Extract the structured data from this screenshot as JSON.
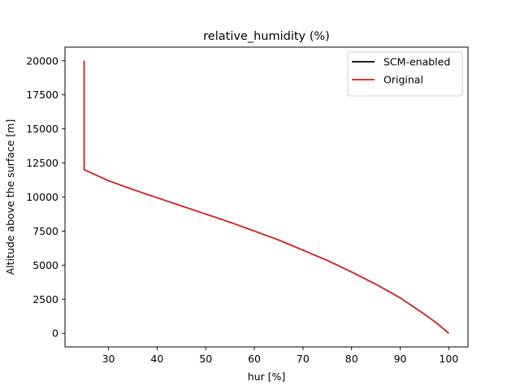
{
  "chart_data": {
    "type": "line",
    "title": "relative_humidity (%)",
    "xlabel": "hur [%]",
    "ylabel": "Altitude above the surface [m]",
    "xlim": [
      21.05,
      103.95
    ],
    "ylim": [
      -1000,
      21000
    ],
    "xticks": [
      30,
      40,
      50,
      60,
      70,
      80,
      90,
      100
    ],
    "yticks": [
      0,
      2500,
      5000,
      7500,
      10000,
      12500,
      15000,
      17500,
      20000
    ],
    "grid": false,
    "legend_position": "top-right",
    "series": [
      {
        "name": "SCM-enabled",
        "color": "#000000",
        "points": [
          [
            100,
            0
          ],
          [
            97.5,
            750
          ],
          [
            95,
            1400
          ],
          [
            92.5,
            2000
          ],
          [
            90,
            2600
          ],
          [
            85,
            3600
          ],
          [
            80,
            4500
          ],
          [
            75,
            5350
          ],
          [
            70,
            6100
          ],
          [
            65,
            6850
          ],
          [
            60,
            7500
          ],
          [
            55,
            8150
          ],
          [
            50,
            8750
          ],
          [
            45,
            9350
          ],
          [
            40,
            9950
          ],
          [
            35,
            10550
          ],
          [
            30,
            11200
          ],
          [
            25,
            12000
          ],
          [
            25,
            20000
          ]
        ]
      },
      {
        "name": "Original",
        "color": "#e41a1c",
        "points": [
          [
            100,
            0
          ],
          [
            97.5,
            750
          ],
          [
            95,
            1400
          ],
          [
            92.5,
            2000
          ],
          [
            90,
            2600
          ],
          [
            85,
            3600
          ],
          [
            80,
            4500
          ],
          [
            75,
            5350
          ],
          [
            70,
            6100
          ],
          [
            65,
            6850
          ],
          [
            60,
            7500
          ],
          [
            55,
            8150
          ],
          [
            50,
            8750
          ],
          [
            45,
            9350
          ],
          [
            40,
            9950
          ],
          [
            35,
            10550
          ],
          [
            30,
            11200
          ],
          [
            25,
            12000
          ],
          [
            25,
            20000
          ]
        ]
      }
    ]
  }
}
